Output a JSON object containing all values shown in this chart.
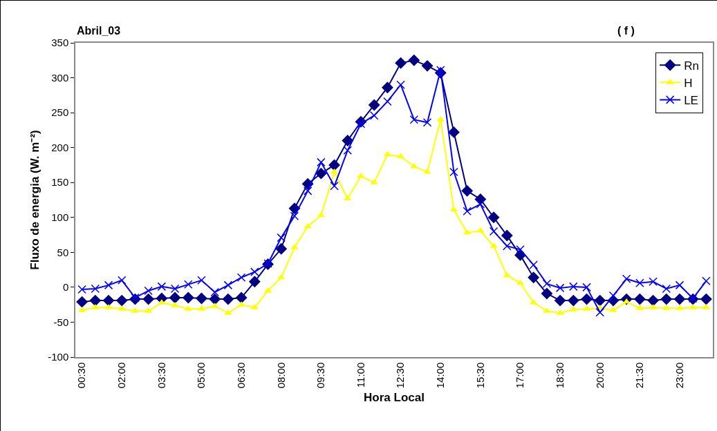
{
  "chart_data": {
    "type": "line",
    "xlabel": "Hora Local",
    "ylabel": "Fluxo de energia (W. m⁻²)",
    "annotations": [
      "Abril_03",
      "( f )"
    ],
    "categories": [
      "00:30",
      null,
      null,
      "02:00",
      null,
      null,
      "03:30",
      null,
      null,
      "05:00",
      null,
      null,
      "06:30",
      null,
      null,
      "08:00",
      null,
      null,
      "09:30",
      null,
      null,
      "11:00",
      null,
      null,
      "12:30",
      null,
      null,
      "14:00",
      null,
      null,
      "15:30",
      null,
      null,
      "17:00",
      null,
      null,
      "18:30",
      null,
      null,
      "20:00",
      null,
      null,
      "21:30",
      null,
      null,
      "23:00",
      null,
      null
    ],
    "series": [
      {
        "name": "Rn",
        "color": "#000080",
        "marker": "diamond",
        "values": [
          -21,
          -19,
          -19,
          -19,
          -17,
          -17,
          -16,
          -15,
          -15,
          -16,
          -17,
          -17,
          -15,
          8,
          33,
          55,
          113,
          148,
          163,
          175,
          210,
          237,
          261,
          286,
          321,
          325,
          317,
          307,
          222,
          138,
          126,
          100,
          74,
          46,
          14,
          -9,
          -19,
          -19,
          -17,
          -19,
          -19,
          -17,
          -17,
          -19,
          -17,
          -17,
          -17,
          -17
        ]
      },
      {
        "name": "H",
        "color": "#ffff00",
        "marker": "triangle",
        "values": [
          -33,
          -29,
          -29,
          -31,
          -34,
          -34,
          -22,
          -26,
          -31,
          -31,
          -27,
          -37,
          -25,
          -29,
          -5,
          14,
          57,
          87,
          103,
          165,
          127,
          159,
          150,
          190,
          187,
          173,
          165,
          240,
          111,
          78,
          81,
          59,
          17,
          6,
          -22,
          -34,
          -37,
          -32,
          -31,
          -30,
          -33,
          -21,
          -30,
          -29,
          -30,
          -30,
          -29,
          -29
        ]
      },
      {
        "name": "LE",
        "color": "#0000ff",
        "marker": "cross",
        "values": [
          -3,
          -2,
          3,
          10,
          -15,
          -5,
          1,
          -2,
          4,
          10,
          -7,
          3,
          14,
          22,
          34,
          71,
          102,
          138,
          179,
          145,
          196,
          234,
          246,
          266,
          290,
          240,
          236,
          311,
          165,
          109,
          119,
          80,
          59,
          54,
          32,
          5,
          -1,
          1,
          0,
          -36,
          -12,
          12,
          6,
          8,
          -2,
          3,
          -16,
          9
        ]
      }
    ],
    "ylim": [
      -100,
      350
    ],
    "yticks": [
      -100,
      -50,
      0,
      50,
      100,
      150,
      200,
      250,
      300,
      350
    ],
    "grid": false,
    "legend": "top right",
    "line_style": "solid"
  }
}
